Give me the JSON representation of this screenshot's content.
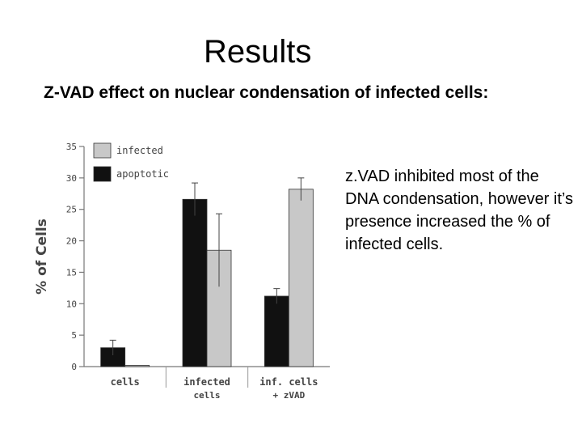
{
  "slide": {
    "title": "Results",
    "subtitle": "Z-VAD effect on nuclear condensation of infected cells:",
    "body": "z.VAD inhibited most of the DNA condensation, however it’s presence increased the % of infected cells."
  },
  "chart_data": {
    "type": "bar",
    "ylabel": "% of Cells",
    "ylim": [
      0,
      35
    ],
    "yticks": [
      0,
      5,
      10,
      15,
      20,
      25,
      30,
      35
    ],
    "categories": [
      {
        "lines": [
          "cells"
        ]
      },
      {
        "lines": [
          "infected",
          "cells"
        ]
      },
      {
        "lines": [
          "inf.   cells",
          "+ zVAD"
        ]
      }
    ],
    "series": [
      {
        "name": "infected",
        "color": "#c8c8c8",
        "values": [
          0.2,
          18.5,
          28.2
        ],
        "errors": [
          0,
          5.8,
          1.8
        ]
      },
      {
        "name": "apoptotic",
        "color": "#111111",
        "values": [
          3.0,
          26.6,
          11.2
        ],
        "errors": [
          1.2,
          2.6,
          1.2
        ]
      }
    ],
    "bar_order": [
      "apoptotic",
      "infected"
    ],
    "legend_position": "top-left",
    "grid": false
  }
}
